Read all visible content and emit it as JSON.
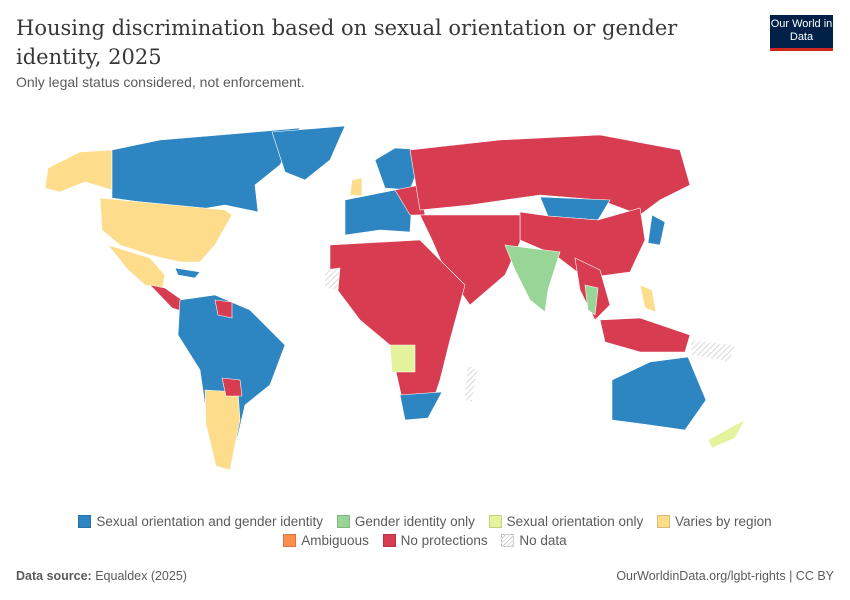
{
  "header": {
    "title": "Housing discrimination based on sexual orientation or gender identity, 2025",
    "subtitle": "Only legal status considered, not enforcement.",
    "logo": "Our World in Data"
  },
  "colors": {
    "sogi": "#2d85c2",
    "gi": "#9ad598",
    "so": "#e4f49c",
    "varies": "#fddc8b",
    "ambiguous": "#fd8c4f",
    "none": "#d73c50",
    "nodata": "#e0e0e0"
  },
  "legend": {
    "items": [
      {
        "label": "Sexual orientation and gender identity",
        "color": "#2d85c2"
      },
      {
        "label": "Gender identity only",
        "color": "#9ad598"
      },
      {
        "label": "Sexual orientation only",
        "color": "#e4f49c"
      },
      {
        "label": "Varies by region",
        "color": "#fddc8b"
      },
      {
        "label": "Ambiguous",
        "color": "#fd8c4f"
      },
      {
        "label": "No protections",
        "color": "#d73c50"
      },
      {
        "label": "No data",
        "color": "hatched"
      }
    ]
  },
  "footer": {
    "source_label": "Data source:",
    "source": "Equaldex (2025)",
    "url": "OurWorldinData.org/lgbt-rights | CC BY"
  }
}
